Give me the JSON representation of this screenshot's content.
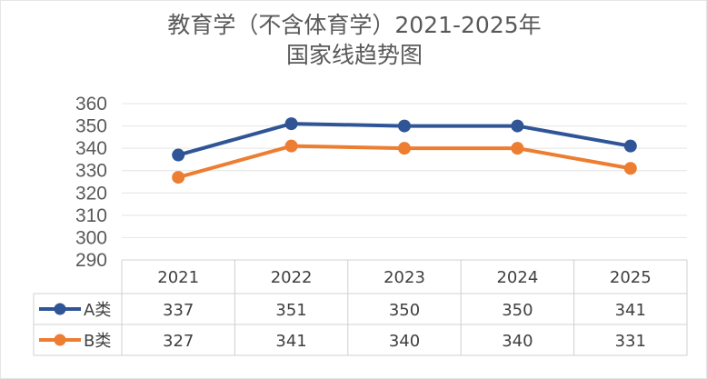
{
  "chart_data": {
    "type": "line",
    "title": "教育学（不含体育学）2021-2025年",
    "subtitle": "国家线趋势图",
    "categories": [
      "2021",
      "2022",
      "2023",
      "2024",
      "2025"
    ],
    "series": [
      {
        "name": "A类",
        "values": [
          337,
          351,
          350,
          350,
          341
        ],
        "color": "#2F5597"
      },
      {
        "name": "B类",
        "values": [
          327,
          341,
          340,
          340,
          331
        ],
        "color": "#ED7D31"
      }
    ],
    "ylim": [
      290,
      360
    ],
    "yticks": [
      290,
      300,
      310,
      320,
      330,
      340,
      350,
      360
    ],
    "grid": true,
    "legend": "data-table",
    "xlabel": "",
    "ylabel": ""
  }
}
